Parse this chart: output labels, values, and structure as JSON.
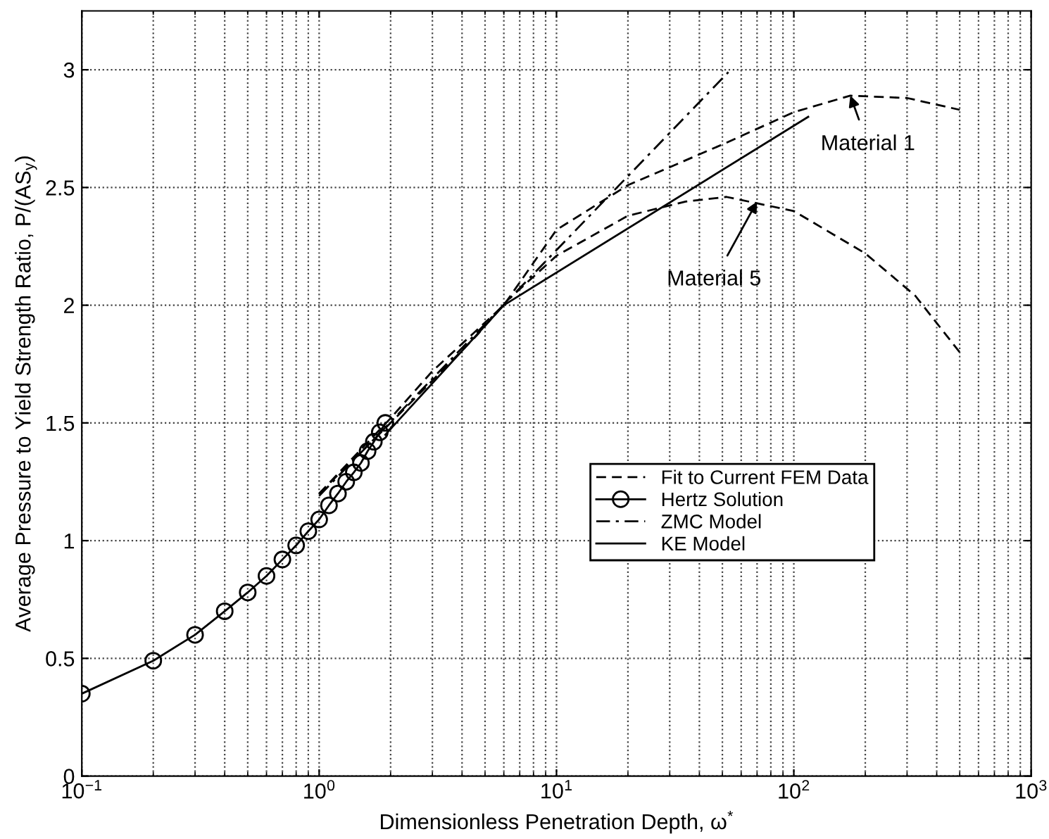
{
  "chart_data": {
    "type": "line",
    "xlabel": "Dimensionless Penetration Depth, ω$^{*}$",
    "ylabel": "Average Pressure to Yield Strength Ratio, P/(AS$_{y}$)",
    "log": "x",
    "xlim": [
      0.1,
      1000
    ],
    "ylim": [
      0,
      3.25
    ],
    "xticks": [
      {
        "value": 0.1,
        "label": "10$^{−1}$"
      },
      {
        "value": 1,
        "label": "10$^{0}$"
      },
      {
        "value": 10,
        "label": "10$^{1}$"
      },
      {
        "value": 100,
        "label": "10$^{2}$"
      },
      {
        "value": 1000,
        "label": "10$^{3}$"
      }
    ],
    "yticks": [
      0,
      0.5,
      1,
      1.5,
      2,
      2.5,
      3
    ],
    "grid": true,
    "legend": "right",
    "series": [
      {
        "name": "Fit to Current FEM Data",
        "color": "#000000",
        "line_style": "dashed",
        "marker": "none",
        "x": [
          1,
          2,
          3,
          6,
          10,
          20,
          52,
          100,
          173,
          300,
          500
        ],
        "values": [
          1.2,
          1.52,
          1.72,
          2.0,
          2.32,
          2.51,
          2.69,
          2.82,
          2.89,
          2.88,
          2.83
        ]
      },
      {
        "name": "Hertz Solution",
        "color": "#000000",
        "line_style": "solid",
        "marker": "circle",
        "x": [
          0.1,
          0.2,
          0.3,
          0.4,
          0.5,
          0.6,
          0.7,
          0.8,
          0.9,
          1.0,
          1.1,
          1.2,
          1.3,
          1.4,
          1.5,
          1.6,
          1.7,
          1.8,
          1.9
        ],
        "values": [
          0.35,
          0.49,
          0.6,
          0.7,
          0.78,
          0.85,
          0.92,
          0.98,
          1.04,
          1.09,
          1.15,
          1.2,
          1.25,
          1.29,
          1.33,
          1.38,
          1.42,
          1.46,
          1.5
        ]
      },
      {
        "name": "ZMC Model",
        "color": "#000000",
        "line_style": "dashdot",
        "marker": "none",
        "x": [
          1,
          53
        ],
        "values": [
          1.19,
          2.99
        ]
      },
      {
        "name": "KE Model",
        "color": "#000000",
        "line_style": "solid",
        "marker": "none",
        "x": [
          1.9,
          6,
          115
        ],
        "values": [
          1.45,
          2.0,
          2.8
        ]
      },
      {
        "color": "#000000",
        "line_style": "dashed",
        "marker": "none",
        "x": [
          1,
          2,
          4.6,
          6.2,
          10,
          20,
          35,
          52,
          100,
          200,
          325,
          500
        ],
        "values": [
          1.2,
          1.5,
          1.87,
          2.02,
          2.21,
          2.38,
          2.44,
          2.46,
          2.4,
          2.22,
          2.04,
          1.8
        ]
      }
    ],
    "annotations": [
      {
        "text": "Material 1",
        "x": 173,
        "y": 2.89
      },
      {
        "text": "Material 5",
        "x": 70,
        "y": 2.44
      }
    ]
  }
}
